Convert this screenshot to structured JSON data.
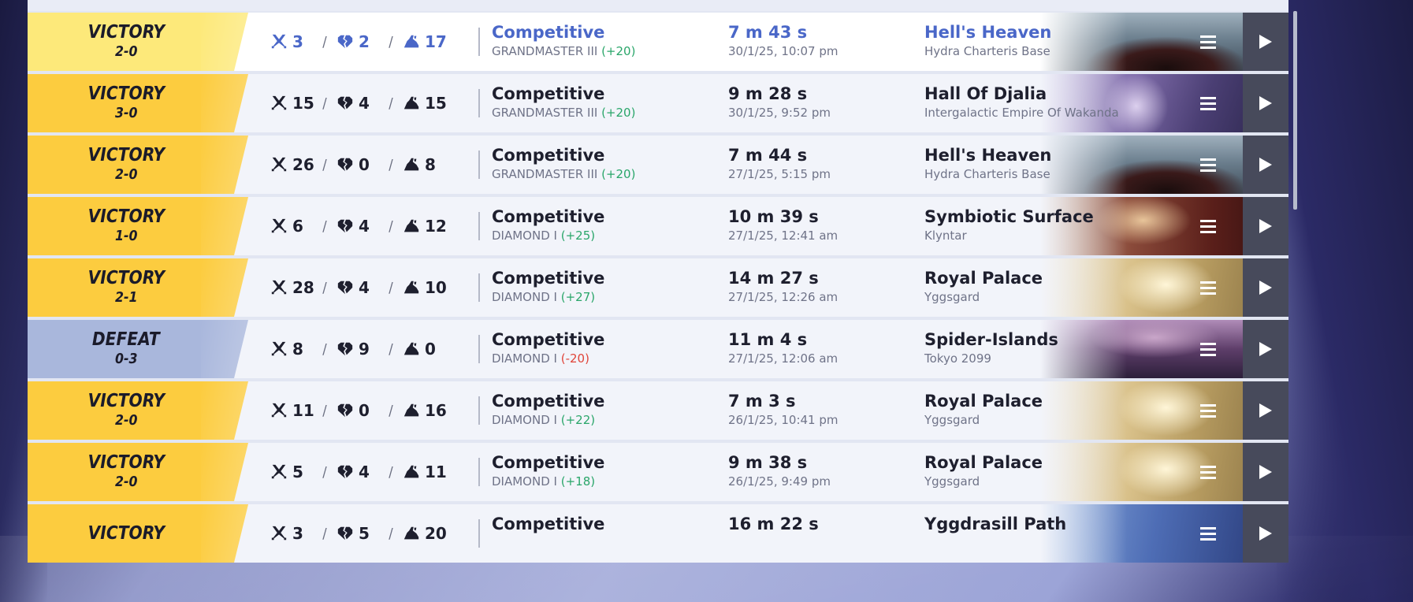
{
  "matches": [
    {
      "result": "VICTORY",
      "score": "2-0",
      "kills": "3",
      "deaths": "2",
      "assists": "17",
      "mode": "Competitive",
      "rank": "GRANDMASTER III",
      "delta": "(+20)",
      "delta_sign": "pos",
      "duration": "7 m 43 s",
      "date": "30/1/25, 10:07 pm",
      "map": "Hell's Heaven",
      "region": "Hydra Charteris Base",
      "art": "hells-heaven",
      "highlight": true
    },
    {
      "result": "VICTORY",
      "score": "3-0",
      "kills": "15",
      "deaths": "4",
      "assists": "15",
      "mode": "Competitive",
      "rank": "GRANDMASTER III",
      "delta": "(+20)",
      "delta_sign": "pos",
      "duration": "9 m 28 s",
      "date": "30/1/25, 9:52 pm",
      "map": "Hall Of Djalia",
      "region": "Intergalactic Empire Of Wakanda",
      "art": "djalia"
    },
    {
      "result": "VICTORY",
      "score": "2-0",
      "kills": "26",
      "deaths": "0",
      "assists": "8",
      "mode": "Competitive",
      "rank": "GRANDMASTER III",
      "delta": "(+20)",
      "delta_sign": "pos",
      "duration": "7 m 44 s",
      "date": "27/1/25, 5:15 pm",
      "map": "Hell's Heaven",
      "region": "Hydra Charteris Base",
      "art": "hells-heaven"
    },
    {
      "result": "VICTORY",
      "score": "1-0",
      "kills": "6",
      "deaths": "4",
      "assists": "12",
      "mode": "Competitive",
      "rank": "DIAMOND I",
      "delta": "(+25)",
      "delta_sign": "pos",
      "duration": "10 m 39 s",
      "date": "27/1/25, 12:41 am",
      "map": "Symbiotic Surface",
      "region": "Klyntar",
      "art": "klyntar"
    },
    {
      "result": "VICTORY",
      "score": "2-1",
      "kills": "28",
      "deaths": "4",
      "assists": "10",
      "mode": "Competitive",
      "rank": "DIAMOND I",
      "delta": "(+27)",
      "delta_sign": "pos",
      "duration": "14 m 27 s",
      "date": "27/1/25, 12:26 am",
      "map": "Royal Palace",
      "region": "Yggsgard",
      "art": "royal-palace"
    },
    {
      "result": "DEFEAT",
      "score": "0-3",
      "kills": "8",
      "deaths": "9",
      "assists": "0",
      "mode": "Competitive",
      "rank": "DIAMOND I",
      "delta": "(-20)",
      "delta_sign": "neg",
      "duration": "11 m 4 s",
      "date": "27/1/25, 12:06 am",
      "map": "Spider-Islands",
      "region": "Tokyo 2099",
      "art": "tokyo"
    },
    {
      "result": "VICTORY",
      "score": "2-0",
      "kills": "11",
      "deaths": "0",
      "assists": "16",
      "mode": "Competitive",
      "rank": "DIAMOND I",
      "delta": "(+22)",
      "delta_sign": "pos",
      "duration": "7 m 3 s",
      "date": "26/1/25, 10:41 pm",
      "map": "Royal Palace",
      "region": "Yggsgard",
      "art": "royal-palace"
    },
    {
      "result": "VICTORY",
      "score": "2-0",
      "kills": "5",
      "deaths": "4",
      "assists": "11",
      "mode": "Competitive",
      "rank": "DIAMOND I",
      "delta": "(+18)",
      "delta_sign": "pos",
      "duration": "9 m 38 s",
      "date": "26/1/25, 9:49 pm",
      "map": "Royal Palace",
      "region": "Yggsgard",
      "art": "royal-palace"
    },
    {
      "result": "VICTORY",
      "score": "",
      "kills": "3",
      "deaths": "5",
      "assists": "20",
      "mode": "Competitive",
      "rank": "",
      "delta": "",
      "delta_sign": "pos",
      "duration": "16 m 22 s",
      "date": "",
      "map": "Yggdrasill Path",
      "region": "",
      "art": "yggdrasill"
    }
  ],
  "colors": {
    "victory": "#fccc3f",
    "victory_highlight": "#fde97a",
    "defeat": "#a9b7dc",
    "highlight_text": "#4a67c8",
    "positive": "#2aa66a",
    "negative": "#e0453a",
    "play_button": "#474a5b"
  },
  "icons": {
    "kills": "crossed-swords-icon",
    "deaths": "broken-heart-icon",
    "assists": "helping-hand-icon",
    "menu": "hamburger-menu-icon",
    "play": "play-icon"
  }
}
